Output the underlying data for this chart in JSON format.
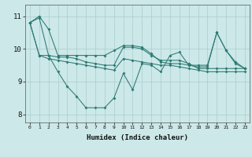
{
  "xlabel": "Humidex (Indice chaleur)",
  "bg_color": "#cce8e8",
  "line_color": "#2d7a72",
  "grid_color": "#aacccc",
  "xlim": [
    -0.5,
    23.5
  ],
  "ylim": [
    7.75,
    11.35
  ],
  "yticks": [
    8,
    9,
    10,
    11
  ],
  "series": [
    [
      10.8,
      11.0,
      10.6,
      9.8,
      9.8,
      9.8,
      9.8,
      9.8,
      9.8,
      9.95,
      10.1,
      10.1,
      10.05,
      9.85,
      9.6,
      9.55,
      9.55,
      9.5,
      9.45,
      9.45,
      10.5,
      9.95,
      9.55,
      9.4
    ],
    [
      10.8,
      9.8,
      9.8,
      9.75,
      9.75,
      9.7,
      9.6,
      9.55,
      9.5,
      9.5,
      10.05,
      10.05,
      10.0,
      9.8,
      9.65,
      9.65,
      9.65,
      9.55,
      9.4,
      9.4,
      9.4,
      9.4,
      9.4,
      9.4
    ],
    [
      10.8,
      10.95,
      9.8,
      9.3,
      8.85,
      8.55,
      8.2,
      8.2,
      8.2,
      8.5,
      9.25,
      8.75,
      9.55,
      9.5,
      9.3,
      9.8,
      9.9,
      9.5,
      9.5,
      9.5,
      10.5,
      9.95,
      9.6,
      9.4
    ],
    [
      10.8,
      9.8,
      9.7,
      9.65,
      9.6,
      9.55,
      9.5,
      9.45,
      9.4,
      9.35,
      9.7,
      9.65,
      9.6,
      9.55,
      9.5,
      9.5,
      9.45,
      9.4,
      9.35,
      9.3,
      9.3,
      9.3,
      9.3,
      9.3
    ]
  ]
}
